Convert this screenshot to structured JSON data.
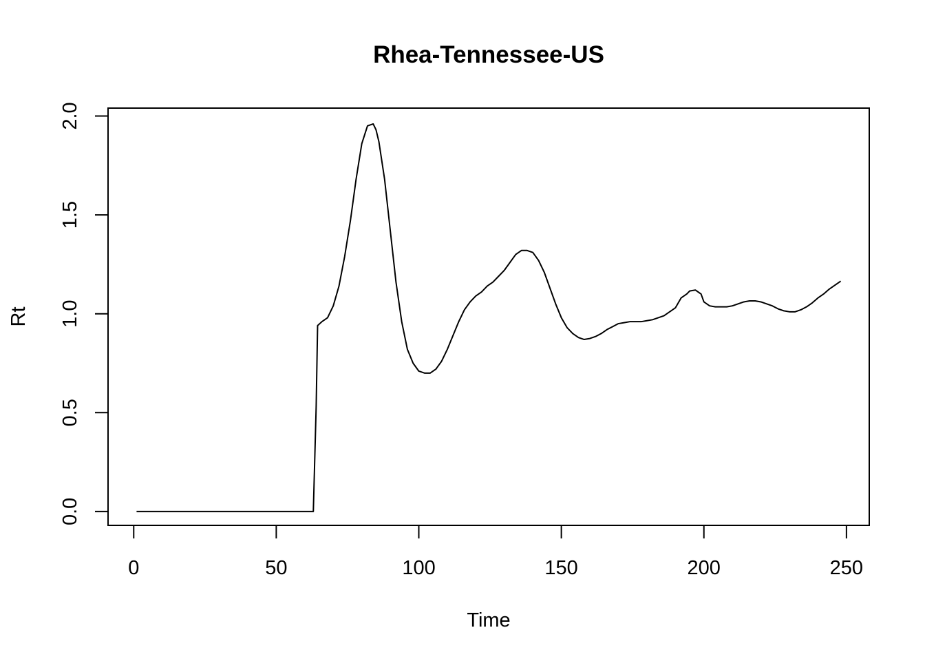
{
  "chart_data": {
    "type": "line",
    "title": "Rhea-Tennessee-US",
    "xlabel": "Time",
    "ylabel": "Rt",
    "xlim": [
      -9,
      258
    ],
    "ylim": [
      -0.07,
      2.04
    ],
    "xticks": [
      0,
      50,
      100,
      150,
      200,
      250
    ],
    "xtick_labels": [
      "0",
      "50",
      "100",
      "150",
      "200",
      "250"
    ],
    "yticks": [
      0.0,
      0.5,
      1.0,
      1.5,
      2.0
    ],
    "ytick_labels": [
      "0.0",
      "0.5",
      "1.0",
      "1.5",
      "2.0"
    ],
    "grid": false,
    "legend": "none",
    "line_color": "#000000",
    "series": [
      {
        "x": [
          1,
          10,
          20,
          30,
          40,
          50,
          60,
          63,
          64,
          64.5,
          66,
          68,
          70,
          72,
          74,
          76,
          78,
          80,
          82,
          84,
          85,
          86,
          88,
          90,
          92,
          94,
          96,
          98,
          100,
          102,
          104,
          106,
          108,
          110,
          112,
          114,
          116,
          118,
          120,
          122,
          124,
          126,
          128,
          130,
          132,
          134,
          136,
          138,
          140,
          142,
          144,
          146,
          148,
          150,
          152,
          154,
          156,
          158,
          160,
          162,
          164,
          166,
          168,
          170,
          172,
          174,
          176,
          178,
          180,
          182,
          184,
          186,
          188,
          190,
          192,
          194,
          195,
          197,
          199,
          200,
          202,
          204,
          206,
          208,
          210,
          212,
          214,
          216,
          218,
          220,
          222,
          224,
          226,
          228,
          230,
          232,
          234,
          236,
          238,
          240,
          242,
          244,
          246,
          248
        ],
        "y": [
          0,
          0,
          0,
          0,
          0,
          0,
          0,
          0,
          0.53,
          0.94,
          0.96,
          0.98,
          1.04,
          1.14,
          1.29,
          1.47,
          1.68,
          1.86,
          1.95,
          1.96,
          1.93,
          1.87,
          1.68,
          1.42,
          1.16,
          0.96,
          0.82,
          0.75,
          0.71,
          0.7,
          0.7,
          0.72,
          0.76,
          0.82,
          0.89,
          0.96,
          1.02,
          1.06,
          1.09,
          1.11,
          1.14,
          1.16,
          1.19,
          1.22,
          1.26,
          1.3,
          1.32,
          1.32,
          1.31,
          1.27,
          1.21,
          1.13,
          1.05,
          0.98,
          0.93,
          0.9,
          0.88,
          0.87,
          0.875,
          0.885,
          0.9,
          0.92,
          0.935,
          0.95,
          0.955,
          0.96,
          0.96,
          0.96,
          0.965,
          0.97,
          0.98,
          0.99,
          1.01,
          1.03,
          1.08,
          1.1,
          1.115,
          1.12,
          1.1,
          1.06,
          1.04,
          1.035,
          1.035,
          1.035,
          1.04,
          1.05,
          1.06,
          1.065,
          1.065,
          1.06,
          1.05,
          1.04,
          1.025,
          1.015,
          1.01,
          1.01,
          1.02,
          1.035,
          1.055,
          1.08,
          1.1,
          1.125,
          1.145,
          1.165
        ]
      }
    ]
  }
}
